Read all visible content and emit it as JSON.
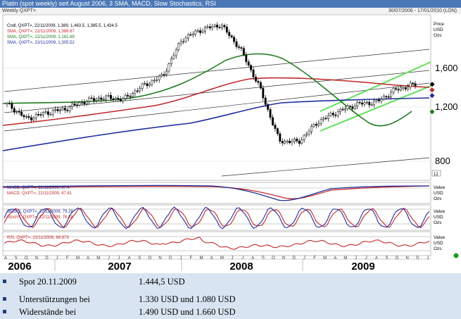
{
  "window": {
    "title": "Platin (spot weekly) seit August 2006, 3 SMA, MACD, Slow Stochastics, RSI",
    "subtitle": "Weekly QXPT=",
    "date_range": "30/07/2006 - 17/01/2010 (LON)"
  },
  "price_panel": {
    "legend": [
      {
        "text": "Cndl, QXPT=, 22/11/2009, 1,389, 1,463.5, 1,385.5, 1,434.5",
        "color": "#000000"
      },
      {
        "text": "SMA, QXPT=, 22/11/2009, 1,386.67",
        "color": "#c0282a"
      },
      {
        "text": "SMA, QXPT=, 22/11/2009, 1,181.69",
        "color": "#1e7a1e"
      },
      {
        "text": "SMA, QXPT=, 22/11/2009, 1,305.52",
        "color": "#1f2f9c"
      }
    ],
    "unit_labels": [
      "Price",
      "USD",
      "Ozs"
    ],
    "ticks": [
      "1,600",
      "1,200",
      "800"
    ],
    "corner_badge": "12"
  },
  "macd_panel": {
    "legend": [
      {
        "text": "MACD, QXPT=, 22/11/2009, 67.4",
        "color": "#1f2f9c"
      },
      {
        "text": "MACD, QXPT=, 22/11/2009, 47.81",
        "color": "#c0282a"
      }
    ],
    "unit_labels": [
      "Value",
      "USD",
      "Ozs"
    ]
  },
  "stoch_panel": {
    "legend": [
      {
        "text": "StochS, QXPT=, 22/11/2009, 79.28",
        "color": "#1f2f9c"
      },
      {
        "text": "StochS, QXPT=, 22/11/2009, 76.28",
        "color": "#c0282a"
      }
    ],
    "unit_labels": [
      "Value",
      "USD",
      "Ozs"
    ]
  },
  "rsi_panel": {
    "legend": [
      {
        "text": "RSI, QXPT=, 22/11/2009, 68.973",
        "color": "#c0282a"
      }
    ],
    "unit_labels": [
      "Value",
      "USD",
      "Ozs"
    ]
  },
  "time_axis": {
    "months": [
      "A",
      "S",
      "O",
      "N",
      "D",
      "J",
      "F",
      "M",
      "A",
      "M",
      "J",
      "J",
      "A",
      "S",
      "O",
      "N",
      "D",
      "J",
      "F",
      "M",
      "A",
      "M",
      "J",
      "J",
      "A",
      "S",
      "O",
      "N",
      "D",
      "J",
      "F",
      "M",
      "A",
      "M",
      "J",
      "J",
      "A",
      "S",
      "O",
      "N",
      "D",
      "J"
    ],
    "years": [
      "2006",
      "2007",
      "2008",
      "2009"
    ]
  },
  "info_box": {
    "rows": [
      {
        "label": "Spot 20.11.2009",
        "value": "1.444,5 USD"
      },
      {
        "label": "Unterstützungen bei",
        "value": "1.330 USD und 1.080 USD"
      },
      {
        "label": "Widerstände bei",
        "value": "1.490 USD und 1.660 USD"
      }
    ]
  },
  "chart_data": {
    "type": "line",
    "title": "Platin (spot weekly) seit August 2006, 3 SMA, MACD, Slow Stochastics, RSI",
    "x": [
      "2006-08",
      "2006-10",
      "2006-12",
      "2007-02",
      "2007-04",
      "2007-06",
      "2007-08",
      "2007-10",
      "2007-12",
      "2008-02",
      "2008-03",
      "2008-05",
      "2008-07",
      "2008-09",
      "2008-10",
      "2008-12",
      "2009-02",
      "2009-04",
      "2009-06",
      "2009-08",
      "2009-10",
      "2009-11"
    ],
    "y_axis": {
      "label": "Price USD Ozs",
      "ticks": [
        800,
        1200,
        1600
      ]
    },
    "series": [
      {
        "name": "Cndl, QXPT= close",
        "values": [
          1230,
          1080,
          1140,
          1180,
          1260,
          1300,
          1280,
          1420,
          1520,
          1900,
          2000,
          2050,
          1800,
          1400,
          850,
          840,
          1050,
          1150,
          1230,
          1250,
          1380,
          1434.5
        ]
      },
      {
        "name": "SMA 1,386.67",
        "values": [
          1050,
          1070,
          1100,
          1140,
          1180,
          1220,
          1260,
          1320,
          1380,
          1440,
          1470,
          1520,
          1560,
          1540,
          1500,
          1470,
          1450,
          1430,
          1410,
          1400,
          1390,
          1386.67
        ]
      },
      {
        "name": "SMA 1,181.69",
        "values": [
          1180,
          1190,
          1210,
          1240,
          1270,
          1310,
          1350,
          1450,
          1580,
          1700,
          1760,
          1780,
          1760,
          1700,
          1600,
          1450,
          1300,
          1180,
          1120,
          1110,
          1160,
          1181.69
        ]
      },
      {
        "name": "SMA 1,305.52",
        "values": [
          900,
          930,
          960,
          1000,
          1040,
          1080,
          1120,
          1160,
          1200,
          1240,
          1260,
          1280,
          1290,
          1290,
          1290,
          1290,
          1290,
          1295,
          1300,
          1300,
          1303,
          1305.52
        ]
      }
    ],
    "macd": {
      "macd_last": 67.4,
      "signal_last": 47.81
    },
    "stochastics": {
      "k_last": 79.28,
      "d_last": 76.28
    },
    "rsi": {
      "last": 68.973
    },
    "grid": true
  }
}
